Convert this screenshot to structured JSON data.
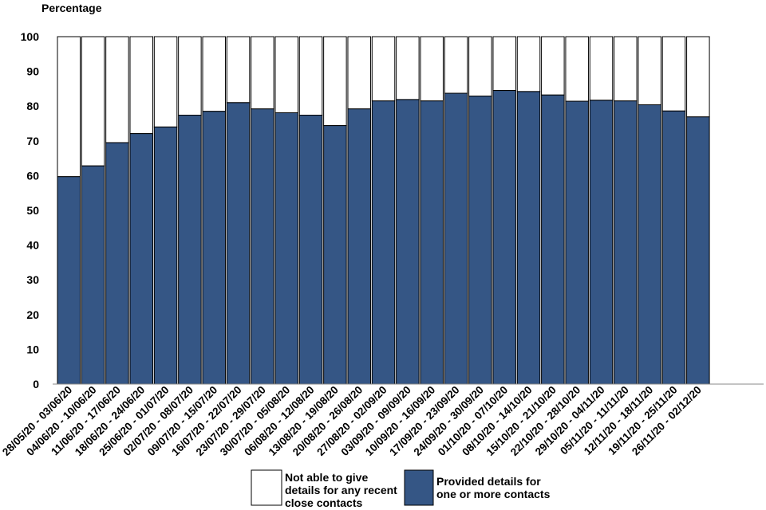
{
  "chart_data": {
    "type": "bar",
    "stacked": true,
    "ylabel": "Percentage",
    "ylim": [
      0,
      100
    ],
    "yticks": [
      0,
      10,
      20,
      30,
      40,
      50,
      60,
      70,
      80,
      90,
      100
    ],
    "grid": false,
    "legend_position": "bottom",
    "categories": [
      "28/05/20 - 03/06/20",
      "04/06/20 - 10/06/20",
      "11/06/20 - 17/06/20",
      "18/06/20 - 24/06/20",
      "25/06/20 - 01/07/20",
      "02/07/20 - 08/07/20",
      "09/07/20 - 15/07/20",
      "16/07/20 - 22/07/20",
      "23/07/20 - 29/07/20",
      "30/07/20 - 05/08/20",
      "06/08/20 - 12/08/20",
      "13/08/20 - 19/08/20",
      "20/08/20 - 26/08/20",
      "27/08/20 - 02/09/20",
      "03/09/20 - 09/09/20",
      "10/09/20 - 16/09/20",
      "17/09/20 - 23/09/20",
      "24/09/20 - 30/09/20",
      "01/10/20 - 07/10/20",
      "08/10/20 - 14/10/20",
      "15/10/20 - 21/10/20",
      "22/10/20 - 28/10/20",
      "29/10/20 - 04/11/20",
      "05/11/20 - 11/11/20",
      "12/11/20 - 18/11/20",
      "19/11/20 - 25/11/20",
      "26/11/20 - 02/12/20"
    ],
    "series": [
      {
        "name": "Provided details for one or more contacts",
        "legend_lines": [
          "Provided details for",
          " one or more contacts"
        ],
        "color": "#355685",
        "values": [
          59.7,
          62.8,
          69.5,
          72.1,
          74.0,
          77.4,
          78.5,
          81.0,
          79.2,
          78.1,
          77.4,
          74.4,
          79.2,
          81.5,
          81.9,
          81.5,
          83.7,
          82.9,
          84.5,
          84.2,
          83.2,
          81.4,
          81.7,
          81.5,
          80.4,
          78.6,
          76.9
        ]
      },
      {
        "name": "Not able to give details for any recent close contacts",
        "legend_lines": [
          "Not able to give",
          " details for any recent",
          " close contacts"
        ],
        "color": "#ffffff",
        "values": [
          40.3,
          37.2,
          30.5,
          27.9,
          26.0,
          22.6,
          21.5,
          19.0,
          20.8,
          21.9,
          22.6,
          25.6,
          20.8,
          18.5,
          18.1,
          18.5,
          16.3,
          17.1,
          15.5,
          15.8,
          16.8,
          18.6,
          18.3,
          18.5,
          19.6,
          21.4,
          23.1
        ]
      }
    ]
  }
}
